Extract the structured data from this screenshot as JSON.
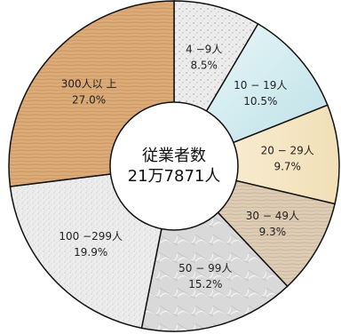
{
  "chart_data": {
    "type": "pie",
    "title": "",
    "center_label": {
      "title": "従業者数",
      "value": "21万7871人"
    },
    "slices": [
      {
        "label": "4 −9人",
        "percent_label": "8.5%",
        "value": 8.5,
        "color": "#e8e8e8",
        "texture": "speckle"
      },
      {
        "label": "10 − 19人",
        "percent_label": "10.5%",
        "value": 10.5,
        "color": "#d7eef0",
        "texture": "cyan-gradient"
      },
      {
        "label": "20 − 29人",
        "percent_label": "9.7%",
        "value": 9.7,
        "color": "#f6e7c8",
        "texture": "cream"
      },
      {
        "label": "30 − 49人",
        "percent_label": "9.3%",
        "value": 9.3,
        "color": "#d9c9b2",
        "texture": "wood-grain"
      },
      {
        "label": "50 − 99人",
        "percent_label": "15.2%",
        "value": 15.2,
        "color": "#d6d6d6",
        "texture": "marble"
      },
      {
        "label": "100 −299人",
        "percent_label": "19.9%",
        "value": 19.9,
        "color": "#eaeaea",
        "texture": "granite"
      },
      {
        "label": "300人以 上",
        "percent_label": "27.0%",
        "value": 27.0,
        "color": "#d9a46e",
        "texture": "wood"
      }
    ]
  }
}
